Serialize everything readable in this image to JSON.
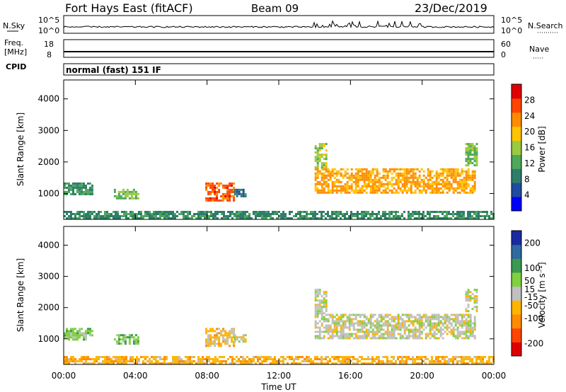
{
  "header": {
    "station": "Fort Hays East (fitACF)",
    "beam": "Beam 09",
    "date": "23/Dec/2019"
  },
  "noise_panel": {
    "left_label": "N.Sky",
    "right_label": "N.Search",
    "left_ticks": [
      "10^5",
      "10^0"
    ],
    "right_ticks": [
      "10^5",
      "10^0"
    ]
  },
  "freq_panel": {
    "left_label_1": "Freq.",
    "left_label_2": "[MHz]",
    "left_ticks": [
      "18",
      "8"
    ],
    "right_label": "Nave",
    "right_ticks": [
      "60",
      "0"
    ],
    "cpid_label": "CPID"
  },
  "cpid_panel": {
    "text": "normal (fast) 151 IF"
  },
  "colors": {
    "power_scale": [
      "#0000ff",
      "#1f4ba0",
      "#2e7d6b",
      "#4ea85a",
      "#9bc940",
      "#ffc400",
      "#ff8c00",
      "#ff4500",
      "#e00000"
    ],
    "velocity_scale": [
      "#e00000",
      "#ff4500",
      "#ff8c00",
      "#ffb400",
      "#c0c0c0",
      "#80d040",
      "#3a9a50",
      "#2e6aa0",
      "#1a2aa0"
    ]
  },
  "chart_data": [
    {
      "type": "heatmap",
      "title": "",
      "xlabel": "",
      "ylabel": "Slant Range [km]",
      "x_ticks": [
        "00:00",
        "04:00",
        "08:00",
        "12:00",
        "16:00",
        "20:00",
        "00:00"
      ],
      "xlim": [
        0,
        24
      ],
      "y_ticks": [
        1000,
        2000,
        3000,
        4000
      ],
      "ylim": [
        180,
        4600
      ],
      "colorbar": {
        "label": "Power [dB]",
        "ticks": [
          4,
          8,
          12,
          16,
          20,
          24,
          28
        ],
        "range": [
          0,
          32
        ]
      },
      "regions": [
        {
          "t": [
            0.0,
            1.6
          ],
          "r": [
            950,
            1350
          ],
          "value": 10
        },
        {
          "t": [
            2.8,
            4.2
          ],
          "r": [
            850,
            1150
          ],
          "value": 14
        },
        {
          "t": [
            7.9,
            9.5
          ],
          "r": [
            750,
            1350
          ],
          "value": 26
        },
        {
          "t": [
            9.5,
            10.2
          ],
          "r": [
            900,
            1150
          ],
          "value": 8
        },
        {
          "t": [
            14.0,
            23.0
          ],
          "r": [
            1050,
            1800
          ],
          "value": 22
        },
        {
          "t": [
            14.0,
            14.6
          ],
          "r": [
            1800,
            2600
          ],
          "value": 16
        },
        {
          "t": [
            22.4,
            23.0
          ],
          "r": [
            1900,
            2600
          ],
          "value": 14
        },
        {
          "t": [
            0.0,
            24.0
          ],
          "r": [
            200,
            450
          ],
          "value": 10
        }
      ]
    },
    {
      "type": "heatmap",
      "title": "",
      "xlabel": "Time UT",
      "ylabel": "Slant Range [km]",
      "x_ticks": [
        "00:00",
        "04:00",
        "08:00",
        "12:00",
        "16:00",
        "20:00",
        "00:00"
      ],
      "xlim": [
        0,
        24
      ],
      "y_ticks": [
        1000,
        2000,
        3000,
        4000
      ],
      "ylim": [
        180,
        4600
      ],
      "colorbar": {
        "label": "Velocity [m s⁻¹]",
        "ticks": [
          200,
          100,
          50,
          15,
          -15,
          -50,
          -100,
          -200
        ],
        "range": [
          -250,
          250
        ]
      },
      "regions": [
        {
          "t": [
            0.0,
            1.6
          ],
          "r": [
            950,
            1350
          ],
          "value": 60
        },
        {
          "t": [
            2.8,
            4.2
          ],
          "r": [
            850,
            1150
          ],
          "value": 60
        },
        {
          "t": [
            7.9,
            9.5
          ],
          "r": [
            750,
            1350
          ],
          "value": -45
        },
        {
          "t": [
            9.5,
            10.2
          ],
          "r": [
            900,
            1150
          ],
          "value": 0
        },
        {
          "t": [
            14.0,
            23.0
          ],
          "r": [
            1050,
            1800
          ],
          "value": 0
        },
        {
          "t": [
            14.0,
            14.6
          ],
          "r": [
            1800,
            2600
          ],
          "value": 0
        },
        {
          "t": [
            22.4,
            23.0
          ],
          "r": [
            1900,
            2600
          ],
          "value": 0
        },
        {
          "t": [
            0.0,
            24.0
          ],
          "r": [
            200,
            450
          ],
          "value": -60
        }
      ]
    }
  ]
}
